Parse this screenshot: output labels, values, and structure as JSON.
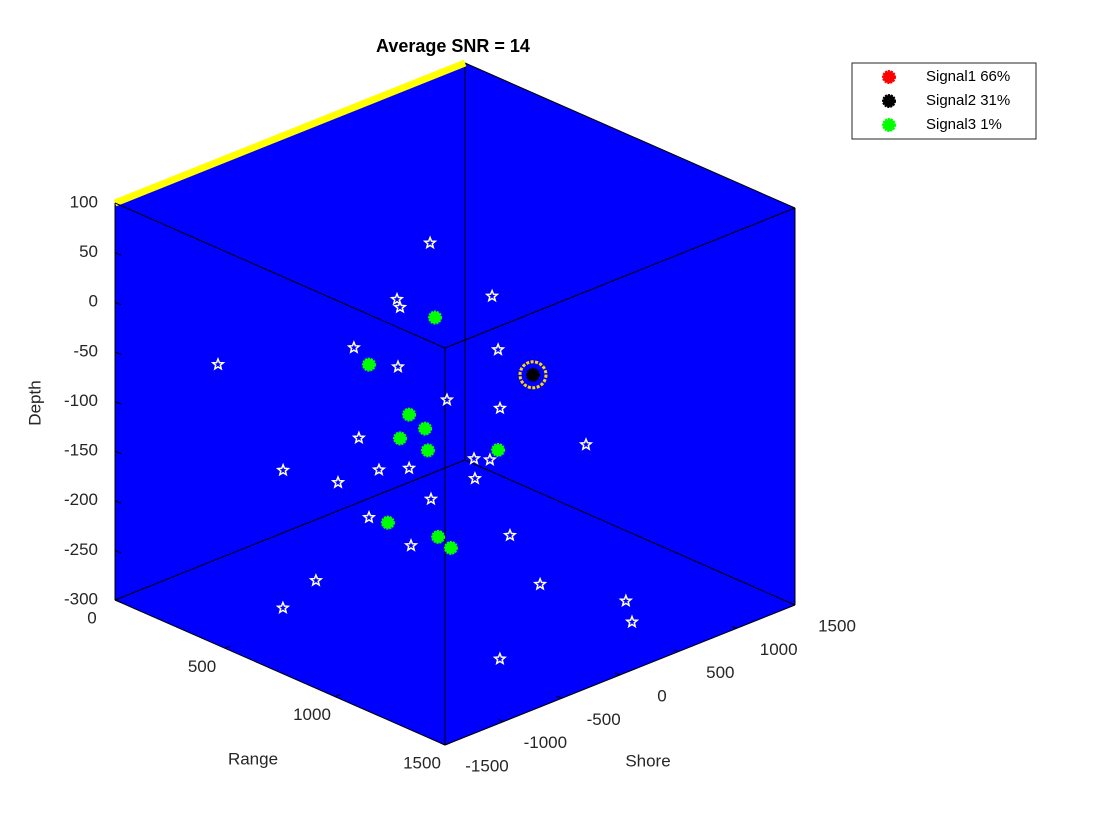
{
  "chart_data": {
    "type": "scatter3d",
    "title": "Average SNR = 14",
    "xlabel": "Range",
    "ylabel": "Shore",
    "zlabel": "Depth",
    "xlim": [
      0,
      1500
    ],
    "ylim": [
      -1500,
      1500
    ],
    "zlim": [
      -300,
      100
    ],
    "xticks": [
      0,
      500,
      1000,
      1500
    ],
    "yticks": [
      -1500,
      -1000,
      -500,
      0,
      500,
      1000,
      1500
    ],
    "zticks": [
      -300,
      -250,
      -200,
      -150,
      -100,
      -50,
      0,
      50,
      100
    ],
    "background": "#0000ff",
    "edge_highlight_color": "#ffff00",
    "legend": "upper right",
    "series": [
      {
        "name": "Signal1 66%",
        "color": "#ff0000",
        "marker": "dot",
        "x": [],
        "y": [],
        "z": []
      },
      {
        "name": "Signal2 31%",
        "color": "#000000",
        "marker": "dot",
        "highlight_color": "#ffd700",
        "x": [
          922
        ],
        "y": [
          344
        ],
        "z": [
          -70
        ]
      },
      {
        "name": "Signal3 1%",
        "color": "#00ff00",
        "marker": "dot",
        "x": [
          706,
          560,
          649,
          684,
          629,
          690,
          845,
          602,
          713,
          741
        ],
        "y": [
          -88,
          -379,
          -203,
          -132,
          -243,
          -119,
          190,
          -296,
          -75,
          -18
        ],
        "z": [
          -13,
          -61,
          -111,
          -125,
          -135,
          -147,
          -146,
          -220,
          -234,
          -245
        ]
      },
      {
        "color": "#ffffff",
        "marker": "star",
        "x": [
          695,
          622,
          629,
          832,
          527,
          624,
          227,
          845,
          732,
          849,
          538,
          1039,
          792,
          827,
          794,
          371,
          582,
          649,
          492,
          697,
          560,
          871,
          653,
          443,
          938,
          407,
          1112,
          1239,
          1153
        ],
        "y": [
          -110,
          -256,
          -243,
          163,
          -446,
          -251,
          -1045,
          190,
          -35,
          199,
          -424,
          578,
          84,
          154,
          88,
          -759,
          -335,
          -203,
          -516,
          -106,
          -379,
          243,
          -194,
          -613,
          375,
          -828,
          782,
          595,
          -375
        ],
        "z": [
          62,
          5,
          -3,
          9,
          -44,
          -63,
          -62,
          -45,
          -96,
          -104,
          -135,
          -140,
          -155,
          -156,
          -175,
          -168,
          -167,
          -165,
          -180,
          -196,
          -215,
          -232,
          -243,
          -279,
          -281,
          -300,
          -300,
          -300,
          -300
        ]
      }
    ]
  }
}
